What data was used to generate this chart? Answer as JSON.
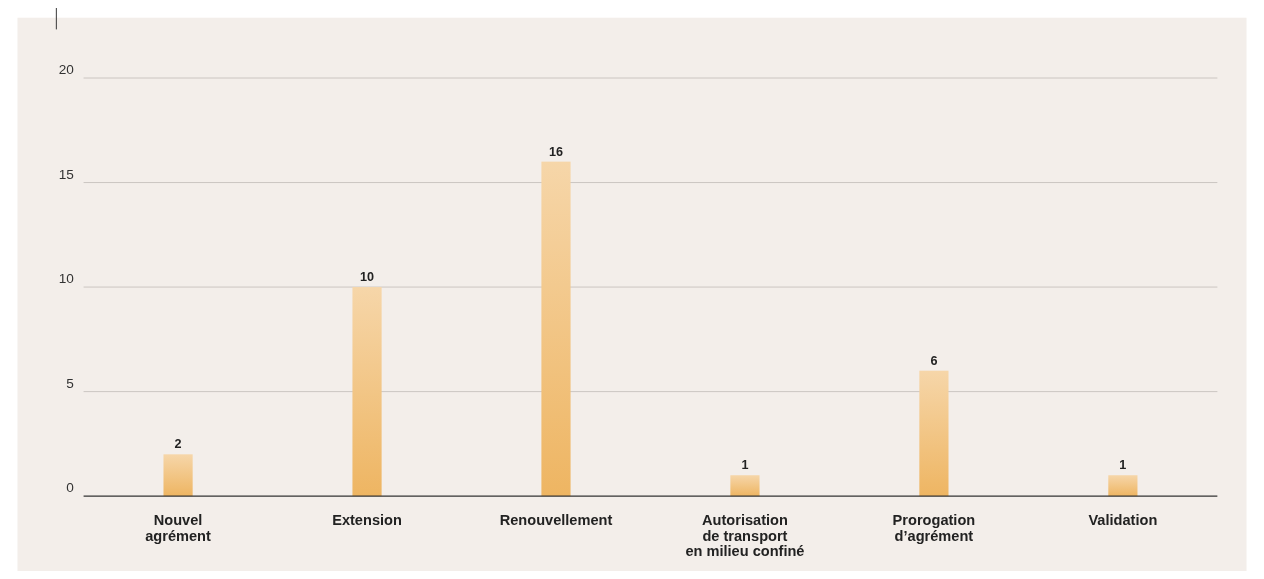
{
  "chart_data": {
    "type": "bar",
    "categories": [
      "Nouvel\nagrément",
      "Extension",
      "Renouvellement",
      "Autorisation\nde transport\nen milieu confiné",
      "Prorogation\nd’agrément",
      "Validation"
    ],
    "values": [
      2,
      10,
      16,
      1,
      6,
      1
    ],
    "color": "#eeb562",
    "ylim": [
      0,
      20
    ],
    "yticks": [
      0,
      5,
      10,
      15,
      20
    ],
    "grid": "y",
    "data_labels": true
  }
}
